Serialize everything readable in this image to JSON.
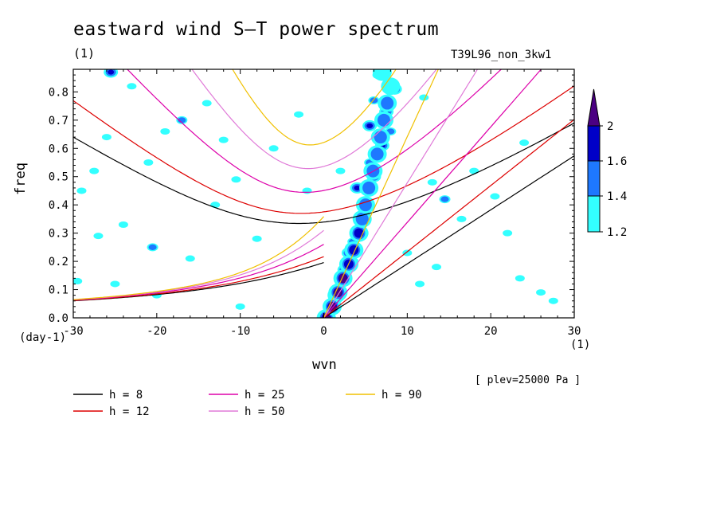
{
  "chart_data": {
    "type": "heatmap",
    "title": "eastward wind S–T power spectrum",
    "subtitle": "(1)",
    "run_id": "T39L96_non_3kw1",
    "xlabel": "wvn",
    "ylabel": "freq",
    "x_unit": "(1)",
    "y_unit": "(day-1)",
    "annotation": "[ plev=25000 Pa ]",
    "xlim": [
      -30,
      30
    ],
    "ylim": [
      0,
      0.88
    ],
    "x_ticks": [
      -30,
      -20,
      -10,
      0,
      10,
      20,
      30
    ],
    "y_ticks": [
      0.0,
      0.1,
      0.2,
      0.3,
      0.4,
      0.5,
      0.6,
      0.7,
      0.8
    ],
    "x_tick_labels": [
      "-30",
      "-20",
      "-10",
      "0",
      "10",
      "20",
      "30"
    ],
    "y_tick_labels": [
      "0.0",
      "0.1",
      "0.2",
      "0.3",
      "0.4",
      "0.5",
      "0.6",
      "0.7",
      "0.8"
    ],
    "colorbar": {
      "levels": [
        1.2,
        1.4,
        1.6,
        2
      ],
      "labels": [
        "1.2",
        "1.4",
        "1.6",
        "2"
      ],
      "colors": [
        "#33ffff",
        "#1e78ff",
        "#0000c8",
        "#4b0082"
      ]
    },
    "dispersion_curves": [
      {
        "label": "h =  8",
        "h": 8,
        "color": "#000000"
      },
      {
        "label": "h = 12",
        "h": 12,
        "color": "#dd0000"
      },
      {
        "label": "h = 25",
        "h": 25,
        "color": "#dd00aa"
      },
      {
        "label": "h = 50",
        "h": 50,
        "color": "#e07ad8"
      },
      {
        "label": "h = 90",
        "h": 90,
        "color": "#f0c000"
      }
    ],
    "dispersion_minima": [
      {
        "h": 8,
        "freq": 0.335
      },
      {
        "h": 12,
        "freq": 0.37
      },
      {
        "h": 25,
        "freq": 0.445
      },
      {
        "h": 50,
        "freq": 0.53
      },
      {
        "h": 90,
        "freq": 0.615
      }
    ],
    "contour_blobs": [
      {
        "k": 1.5,
        "f": 0.08,
        "level": 4
      },
      {
        "k": 2.5,
        "f": 0.17,
        "level": 3
      },
      {
        "k": 3.0,
        "f": 0.23,
        "level": 3
      },
      {
        "k": 4.5,
        "f": 0.3,
        "level": 3
      },
      {
        "k": 5.0,
        "f": 0.4,
        "level": 3
      },
      {
        "k": 4.0,
        "f": 0.46,
        "level": 3
      },
      {
        "k": 6.0,
        "f": 0.5,
        "level": 3
      },
      {
        "k": 7.0,
        "f": 0.61,
        "level": 3
      },
      {
        "k": 5.5,
        "f": 0.68,
        "level": 3
      },
      {
        "k": 7.5,
        "f": 0.73,
        "level": 3
      },
      {
        "k": 8.5,
        "f": 0.81,
        "level": 3
      },
      {
        "k": 6.5,
        "f": 0.86,
        "level": 2
      },
      {
        "k": 2.0,
        "f": 0.12,
        "level": 2
      },
      {
        "k": 3.5,
        "f": 0.27,
        "level": 2
      },
      {
        "k": 4.5,
        "f": 0.35,
        "level": 2
      },
      {
        "k": 5.5,
        "f": 0.55,
        "level": 2
      },
      {
        "k": 6.0,
        "f": 0.77,
        "level": 2
      },
      {
        "k": 8.0,
        "f": 0.66,
        "level": 2
      },
      {
        "k": 3.5,
        "f": 0.2,
        "level": 2
      },
      {
        "k": -25.5,
        "f": 0.87,
        "level": 3
      },
      {
        "k": -17.0,
        "f": 0.7,
        "level": 2
      },
      {
        "k": -20.5,
        "f": 0.25,
        "level": 2
      },
      {
        "k": 14.5,
        "f": 0.42,
        "level": 2
      },
      {
        "k": -26.0,
        "f": 0.64,
        "level": 1
      },
      {
        "k": -29.0,
        "f": 0.45,
        "level": 1
      },
      {
        "k": -27.0,
        "f": 0.29,
        "level": 1
      },
      {
        "k": -23.0,
        "f": 0.82,
        "level": 1
      },
      {
        "k": -19.0,
        "f": 0.66,
        "level": 1
      },
      {
        "k": -21.0,
        "f": 0.55,
        "level": 1
      },
      {
        "k": -14.0,
        "f": 0.76,
        "level": 1
      },
      {
        "k": -12.0,
        "f": 0.63,
        "level": 1
      },
      {
        "k": -10.5,
        "f": 0.49,
        "level": 1
      },
      {
        "k": -13.0,
        "f": 0.4,
        "level": 1
      },
      {
        "k": -8.0,
        "f": 0.28,
        "level": 1
      },
      {
        "k": -16.0,
        "f": 0.21,
        "level": 1
      },
      {
        "k": -25.0,
        "f": 0.12,
        "level": 1
      },
      {
        "k": -20.0,
        "f": 0.08,
        "level": 1
      },
      {
        "k": -10.0,
        "f": 0.04,
        "level": 1
      },
      {
        "k": -3.0,
        "f": 0.72,
        "level": 1
      },
      {
        "k": -6.0,
        "f": 0.6,
        "level": 1
      },
      {
        "k": -2.0,
        "f": 0.45,
        "level": 1
      },
      {
        "k": 2.0,
        "f": 0.52,
        "level": 1
      },
      {
        "k": 12.0,
        "f": 0.78,
        "level": 1
      },
      {
        "k": 13.0,
        "f": 0.48,
        "level": 1
      },
      {
        "k": 16.5,
        "f": 0.35,
        "level": 1
      },
      {
        "k": 18.0,
        "f": 0.52,
        "level": 1
      },
      {
        "k": 20.5,
        "f": 0.43,
        "level": 1
      },
      {
        "k": 22.0,
        "f": 0.3,
        "level": 1
      },
      {
        "k": 23.5,
        "f": 0.14,
        "level": 1
      },
      {
        "k": 26.0,
        "f": 0.09,
        "level": 1
      },
      {
        "k": 27.5,
        "f": 0.06,
        "level": 1
      },
      {
        "k": 24.0,
        "f": 0.62,
        "level": 1
      },
      {
        "k": 10.0,
        "f": 0.23,
        "level": 1
      },
      {
        "k": 11.5,
        "f": 0.12,
        "level": 1
      },
      {
        "k": 13.5,
        "f": 0.18,
        "level": 1
      },
      {
        "k": -27.5,
        "f": 0.52,
        "level": 1
      },
      {
        "k": -29.5,
        "f": 0.13,
        "level": 1
      },
      {
        "k": -24.0,
        "f": 0.33,
        "level": 1
      }
    ]
  }
}
